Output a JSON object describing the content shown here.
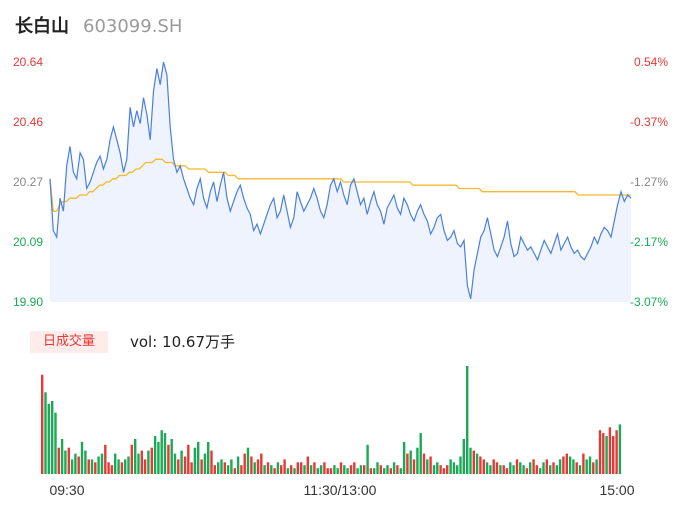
{
  "header": {
    "name": "长白山",
    "code": "603099.SH"
  },
  "volume_tag": "日成交量",
  "volume_text": "vol: 10.67万手",
  "colors": {
    "price_line": "#4a7fe0",
    "avg_line": "#f5b82e",
    "up": "#e53935",
    "down": "#1aaa55",
    "area_fill": "#eef3fd"
  },
  "chart_data": [
    {
      "type": "line",
      "title": "",
      "y_axis_left": {
        "ticks": [
          "20.64",
          "20.46",
          "20.27",
          "20.09",
          "19.90"
        ],
        "range": [
          19.9,
          20.64
        ]
      },
      "y_axis_right": {
        "ticks": [
          "0.54%",
          "-0.37%",
          "-1.27%",
          "-2.17%",
          "-3.07%"
        ]
      },
      "series": [
        {
          "role": "price",
          "values": [
            20.28,
            20.12,
            20.1,
            20.22,
            20.18,
            20.32,
            20.38,
            20.3,
            20.28,
            20.36,
            20.34,
            20.25,
            20.27,
            20.3,
            20.33,
            20.35,
            20.31,
            20.34,
            20.4,
            20.44,
            20.4,
            20.36,
            20.3,
            20.34,
            20.5,
            20.44,
            20.49,
            20.45,
            20.53,
            20.48,
            20.4,
            20.55,
            20.62,
            20.57,
            20.64,
            20.6,
            20.44,
            20.34,
            20.3,
            20.32,
            20.28,
            20.25,
            20.22,
            20.2,
            20.25,
            20.28,
            20.22,
            20.19,
            20.24,
            20.27,
            20.21,
            20.26,
            20.3,
            20.22,
            20.18,
            20.21,
            20.24,
            20.26,
            20.22,
            20.19,
            20.17,
            20.12,
            20.14,
            20.11,
            20.14,
            20.17,
            20.2,
            20.22,
            20.16,
            20.18,
            20.23,
            20.18,
            20.13,
            20.16,
            20.24,
            20.21,
            20.18,
            20.2,
            20.22,
            20.25,
            20.22,
            20.18,
            20.16,
            20.2,
            20.26,
            20.28,
            20.24,
            20.27,
            20.23,
            20.2,
            20.26,
            20.28,
            20.24,
            20.2,
            20.22,
            20.17,
            20.21,
            20.24,
            20.2,
            20.18,
            20.14,
            20.19,
            20.21,
            20.23,
            20.19,
            20.17,
            20.22,
            20.2,
            20.17,
            20.15,
            20.18,
            20.2,
            20.17,
            20.15,
            20.11,
            20.13,
            20.16,
            20.17,
            20.12,
            20.09,
            20.1,
            20.12,
            20.08,
            20.07,
            20.09,
            19.95,
            19.91,
            20.0,
            20.05,
            20.1,
            20.12,
            20.16,
            20.11,
            20.06,
            20.04,
            20.07,
            20.1,
            20.15,
            20.08,
            20.04,
            20.05,
            20.1,
            20.08,
            20.06,
            20.07,
            20.05,
            20.03,
            20.06,
            20.09,
            20.07,
            20.05,
            20.08,
            20.11,
            20.06,
            20.08,
            20.1,
            20.07,
            20.05,
            20.06,
            20.04,
            20.03,
            20.05,
            20.07,
            20.1,
            20.08,
            20.11,
            20.13,
            20.12,
            20.1,
            20.15,
            20.2,
            20.24,
            20.21,
            20.23,
            20.22
          ],
          "pct_change": "right axis"
        },
        {
          "role": "average",
          "values": [
            20.28,
            20.18,
            20.18,
            20.2,
            20.21,
            20.21,
            20.22,
            20.22,
            20.22,
            20.23,
            20.23,
            20.23,
            20.24,
            20.24,
            20.25,
            20.26,
            20.26,
            20.27,
            20.27,
            20.28,
            20.28,
            20.29,
            20.29,
            20.29,
            20.3,
            20.3,
            20.31,
            20.31,
            20.32,
            20.33,
            20.33,
            20.33,
            20.34,
            20.34,
            20.34,
            20.33,
            20.33,
            20.33,
            20.32,
            20.32,
            20.32,
            20.32,
            20.31,
            20.31,
            20.31,
            20.31,
            20.31,
            20.31,
            20.3,
            20.3,
            20.3,
            20.3,
            20.3,
            20.3,
            20.29,
            20.29,
            20.29,
            20.28,
            20.28,
            20.28,
            20.28,
            20.28,
            20.28,
            20.28,
            20.28,
            20.28,
            20.28,
            20.28,
            20.28,
            20.28,
            20.28,
            20.28,
            20.28,
            20.28,
            20.28,
            20.28,
            20.28,
            20.28,
            20.28,
            20.28,
            20.28,
            20.28,
            20.28,
            20.28,
            20.28,
            20.28,
            20.28,
            20.28,
            20.28,
            20.27,
            20.27,
            20.27,
            20.27,
            20.27,
            20.27,
            20.27,
            20.27,
            20.27,
            20.27,
            20.27,
            20.27,
            20.27,
            20.27,
            20.27,
            20.27,
            20.27,
            20.27,
            20.27,
            20.27,
            20.27,
            20.26,
            20.26,
            20.26,
            20.26,
            20.26,
            20.26,
            20.26,
            20.26,
            20.26,
            20.26,
            20.26,
            20.26,
            20.26,
            20.26,
            20.25,
            20.25,
            20.25,
            20.25,
            20.25,
            20.25,
            20.25,
            20.24,
            20.24,
            20.24,
            20.24,
            20.24,
            20.24,
            20.24,
            20.24,
            20.24,
            20.24,
            20.24,
            20.24,
            20.24,
            20.24,
            20.24,
            20.24,
            20.24,
            20.24,
            20.24,
            20.24,
            20.24,
            20.24,
            20.24,
            20.24,
            20.24,
            20.24,
            20.24,
            20.24,
            20.24,
            20.23,
            20.23,
            20.23,
            20.23,
            20.23,
            20.23,
            20.23,
            20.23,
            20.23,
            20.23,
            20.23,
            20.23,
            20.23,
            20.23,
            20.23,
            20.23,
            20.23
          ]
        }
      ]
    },
    {
      "type": "bar",
      "title": "",
      "x_ticks": [
        "09:30",
        "11:30/13:00",
        "15:00"
      ],
      "values": [
        68,
        56,
        48,
        50,
        42,
        18,
        24,
        16,
        18,
        10,
        14,
        12,
        22,
        16,
        10,
        10,
        8,
        12,
        14,
        20,
        8,
        6,
        14,
        10,
        8,
        10,
        12,
        20,
        24,
        14,
        16,
        10,
        16,
        18,
        26,
        22,
        30,
        28,
        20,
        24,
        14,
        10,
        16,
        12,
        20,
        8,
        18,
        22,
        10,
        14,
        22,
        16,
        6,
        8,
        10,
        8,
        6,
        10,
        4,
        12,
        6,
        14,
        18,
        12,
        8,
        10,
        14,
        6,
        8,
        6,
        4,
        8,
        6,
        10,
        4,
        6,
        4,
        8,
        8,
        6,
        12,
        6,
        8,
        4,
        6,
        8,
        4,
        4,
        6,
        4,
        8,
        6,
        4,
        6,
        8,
        4,
        6,
        6,
        20,
        4,
        4,
        8,
        6,
        4,
        6,
        4,
        8,
        6,
        4,
        22,
        14,
        16,
        10,
        18,
        28,
        14,
        10,
        12,
        6,
        8,
        6,
        4,
        6,
        10,
        8,
        6,
        12,
        24,
        74,
        18,
        16,
        14,
        12,
        10,
        8,
        6,
        10,
        8,
        6,
        6,
        4,
        8,
        6,
        10,
        8,
        6,
        4,
        8,
        10,
        6,
        4,
        8,
        10,
        6,
        8,
        6,
        10,
        12,
        14,
        12,
        10,
        8,
        6,
        14,
        10,
        12,
        8,
        10,
        30,
        28,
        26,
        32,
        26,
        30,
        34
      ],
      "directions": [
        "u",
        "d",
        "d",
        "d",
        "d",
        "u",
        "d",
        "d",
        "u",
        "d",
        "d",
        "u",
        "d",
        "d",
        "u",
        "d",
        "u",
        "d",
        "d",
        "u",
        "u",
        "u",
        "d",
        "d",
        "u",
        "d",
        "d",
        "u",
        "d",
        "d",
        "u",
        "u",
        "d",
        "u",
        "d",
        "d",
        "d",
        "d",
        "u",
        "d",
        "d",
        "u",
        "d",
        "u",
        "u",
        "u",
        "d",
        "d",
        "u",
        "d",
        "d",
        "u",
        "u",
        "d",
        "d",
        "u",
        "d",
        "d",
        "u",
        "d",
        "u",
        "u",
        "d",
        "u",
        "d",
        "u",
        "u",
        "d",
        "u",
        "d",
        "u",
        "d",
        "u",
        "u",
        "d",
        "u",
        "d",
        "u",
        "u",
        "d",
        "u",
        "d",
        "u",
        "d",
        "d",
        "u",
        "u",
        "u",
        "d",
        "d",
        "u",
        "d",
        "d",
        "u",
        "u",
        "d",
        "d",
        "u",
        "d",
        "u",
        "d",
        "d",
        "u",
        "d",
        "d",
        "u",
        "d",
        "u",
        "d",
        "d",
        "u",
        "d",
        "u",
        "d",
        "d",
        "u",
        "d",
        "u",
        "d",
        "d",
        "u",
        "u",
        "u",
        "d",
        "d",
        "d",
        "d",
        "d",
        "d",
        "d",
        "u",
        "d",
        "u",
        "u",
        "d",
        "d",
        "u",
        "u",
        "d",
        "u",
        "u",
        "d",
        "d",
        "u",
        "d",
        "d",
        "u",
        "d",
        "u",
        "u",
        "d",
        "d",
        "u",
        "d",
        "u",
        "d",
        "d",
        "u",
        "u",
        "d",
        "d",
        "u",
        "d",
        "u",
        "d",
        "d",
        "u",
        "d",
        "u",
        "u",
        "d",
        "u",
        "u",
        "u"
      ]
    }
  ]
}
